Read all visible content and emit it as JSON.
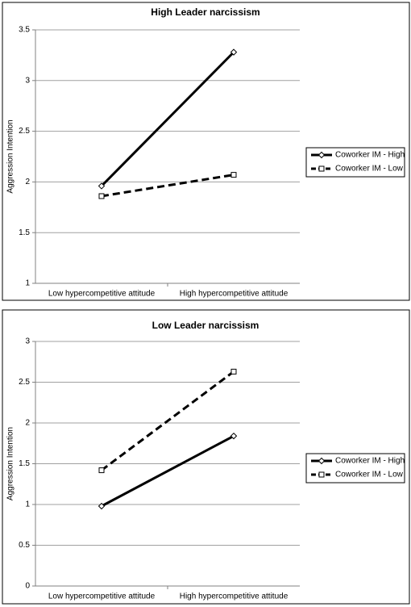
{
  "chart_data": [
    {
      "type": "line",
      "title": "High Leader narcissism",
      "y_label": "Aggression Intention",
      "categories": [
        "Low hypercompetitive attitude",
        "High hypercompetitive attitude"
      ],
      "ylim": [
        1,
        3.5
      ],
      "yticks": [
        1,
        1.5,
        2,
        2.5,
        3,
        3.5
      ],
      "grid": true,
      "legend": "right",
      "series": [
        {
          "name": "Coworker IM - High",
          "color": "#000000",
          "dash": "solid",
          "marker": "diamond",
          "values": [
            1.96,
            3.28
          ]
        },
        {
          "name": "Coworker IM - Low",
          "color": "#000000",
          "dash": "dashed",
          "marker": "square",
          "values": [
            1.86,
            2.07
          ]
        }
      ]
    },
    {
      "type": "line",
      "title": "Low Leader narcissism",
      "y_label": "Aggression Intention",
      "categories": [
        "Low hypercompetitive attitude",
        "High hypercompetitive attitude"
      ],
      "ylim": [
        0,
        3
      ],
      "yticks": [
        0,
        0.5,
        1,
        1.5,
        2,
        2.5,
        3
      ],
      "grid": true,
      "legend": "right",
      "series": [
        {
          "name": "Coworker IM - High",
          "color": "#000000",
          "dash": "solid",
          "marker": "diamond",
          "values": [
            0.98,
            1.84
          ]
        },
        {
          "name": "Coworker IM - Low",
          "color": "#000000",
          "dash": "dashed",
          "marker": "square",
          "values": [
            1.42,
            2.63
          ]
        }
      ]
    }
  ]
}
